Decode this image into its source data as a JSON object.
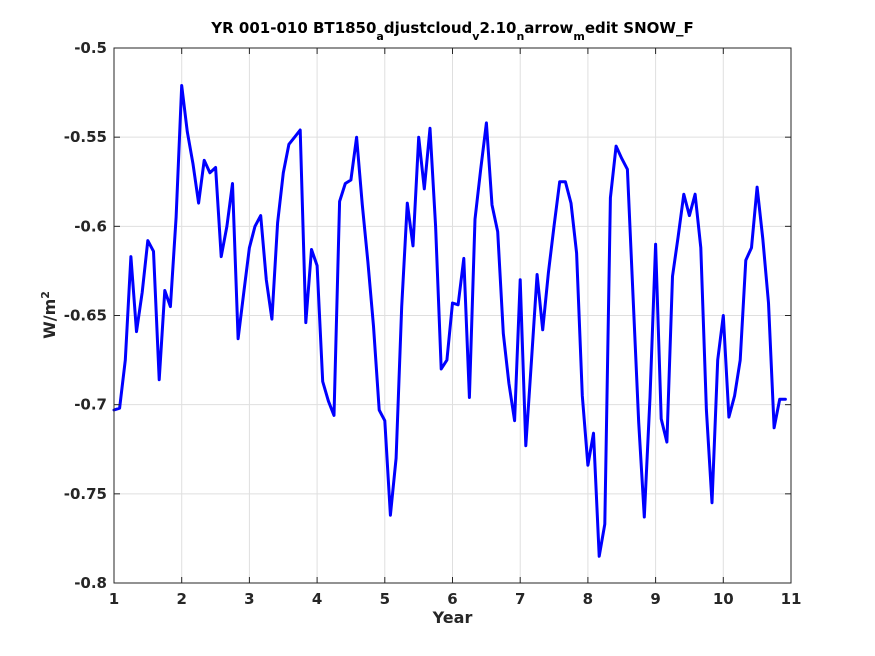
{
  "chart_data": {
    "type": "line",
    "title": {
      "parts": [
        {
          "text": "YR 001-010 BT1850",
          "sub": false
        },
        {
          "text": "a",
          "sub": true
        },
        {
          "text": "djustcloud",
          "sub": false
        },
        {
          "text": "v",
          "sub": true
        },
        {
          "text": "2.10",
          "sub": false
        },
        {
          "text": "n",
          "sub": true
        },
        {
          "text": "arrow",
          "sub": false
        },
        {
          "text": "m",
          "sub": true
        },
        {
          "text": "edit SNOW_F",
          "sub": false
        }
      ]
    },
    "xlabel": "Year",
    "ylabel": {
      "base": "W/m",
      "sup": "2"
    },
    "xlim": [
      1,
      11
    ],
    "ylim": [
      -0.8,
      -0.5
    ],
    "xticks": [
      "1",
      "2",
      "3",
      "4",
      "5",
      "6",
      "7",
      "8",
      "9",
      "10",
      "11"
    ],
    "yticks": [
      "-0.5",
      "-0.55",
      "-0.6",
      "-0.65",
      "-0.7",
      "-0.75",
      "-0.8"
    ],
    "grid": true,
    "line_color": "#0000ff",
    "series": [
      {
        "x": [
          1.0,
          1.083,
          1.167,
          1.25,
          1.333,
          1.417,
          1.5,
          1.583,
          1.667,
          1.75,
          1.833,
          1.917,
          2.0,
          2.083,
          2.167,
          2.25,
          2.333,
          2.417,
          2.5,
          2.583,
          2.667,
          2.75,
          2.833,
          2.917,
          3.0,
          3.083,
          3.167,
          3.25,
          3.333,
          3.417,
          3.5,
          3.583,
          3.667,
          3.75,
          3.833,
          3.917,
          4.0,
          4.083,
          4.167,
          4.25,
          4.333,
          4.417,
          4.5,
          4.583,
          4.667,
          4.75,
          4.833,
          4.917,
          5.0,
          5.083,
          5.167,
          5.25,
          5.333,
          5.417,
          5.5,
          5.583,
          5.667,
          5.75,
          5.833,
          5.917,
          6.0,
          6.083,
          6.167,
          6.25,
          6.333,
          6.417,
          6.5,
          6.583,
          6.667,
          6.75,
          6.833,
          6.917,
          7.0,
          7.083,
          7.167,
          7.25,
          7.333,
          7.417,
          7.5,
          7.583,
          7.667,
          7.75,
          7.833,
          7.917,
          8.0,
          8.083,
          8.167,
          8.25,
          8.333,
          8.417,
          8.5,
          8.583,
          8.667,
          8.75,
          8.833,
          8.917,
          9.0,
          9.083,
          9.167,
          9.25,
          9.333,
          9.417,
          9.5,
          9.583,
          9.667,
          9.75,
          9.833,
          9.917,
          10.0,
          10.083,
          10.167,
          10.25,
          10.333,
          10.417,
          10.5,
          10.583,
          10.667,
          10.75,
          10.833,
          10.917
        ],
        "y": [
          -0.703,
          -0.702,
          -0.675,
          -0.617,
          -0.659,
          -0.637,
          -0.608,
          -0.614,
          -0.686,
          -0.636,
          -0.645,
          -0.595,
          -0.521,
          -0.547,
          -0.565,
          -0.587,
          -0.563,
          -0.57,
          -0.567,
          -0.617,
          -0.6,
          -0.576,
          -0.663,
          -0.637,
          -0.612,
          -0.6,
          -0.594,
          -0.63,
          -0.652,
          -0.598,
          -0.57,
          -0.554,
          -0.55,
          -0.546,
          -0.654,
          -0.613,
          -0.622,
          -0.687,
          -0.698,
          -0.706,
          -0.586,
          -0.576,
          -0.574,
          -0.55,
          -0.588,
          -0.62,
          -0.656,
          -0.703,
          -0.709,
          -0.762,
          -0.73,
          -0.645,
          -0.587,
          -0.611,
          -0.55,
          -0.579,
          -0.545,
          -0.6,
          -0.68,
          -0.675,
          -0.643,
          -0.644,
          -0.618,
          -0.696,
          -0.596,
          -0.568,
          -0.542,
          -0.588,
          -0.603,
          -0.66,
          -0.688,
          -0.709,
          -0.63,
          -0.723,
          -0.675,
          -0.627,
          -0.658,
          -0.626,
          -0.6,
          -0.575,
          -0.575,
          -0.587,
          -0.615,
          -0.695,
          -0.734,
          -0.716,
          -0.785,
          -0.767,
          -0.584,
          -0.555,
          -0.562,
          -0.568,
          -0.64,
          -0.71,
          -0.763,
          -0.696,
          -0.61,
          -0.708,
          -0.721,
          -0.628,
          -0.606,
          -0.582,
          -0.594,
          -0.582,
          -0.612,
          -0.703,
          -0.755,
          -0.675,
          -0.65,
          -0.707,
          -0.695,
          -0.675,
          -0.619,
          -0.612,
          -0.578,
          -0.607,
          -0.643,
          -0.713,
          -0.697,
          -0.697
        ]
      }
    ]
  }
}
